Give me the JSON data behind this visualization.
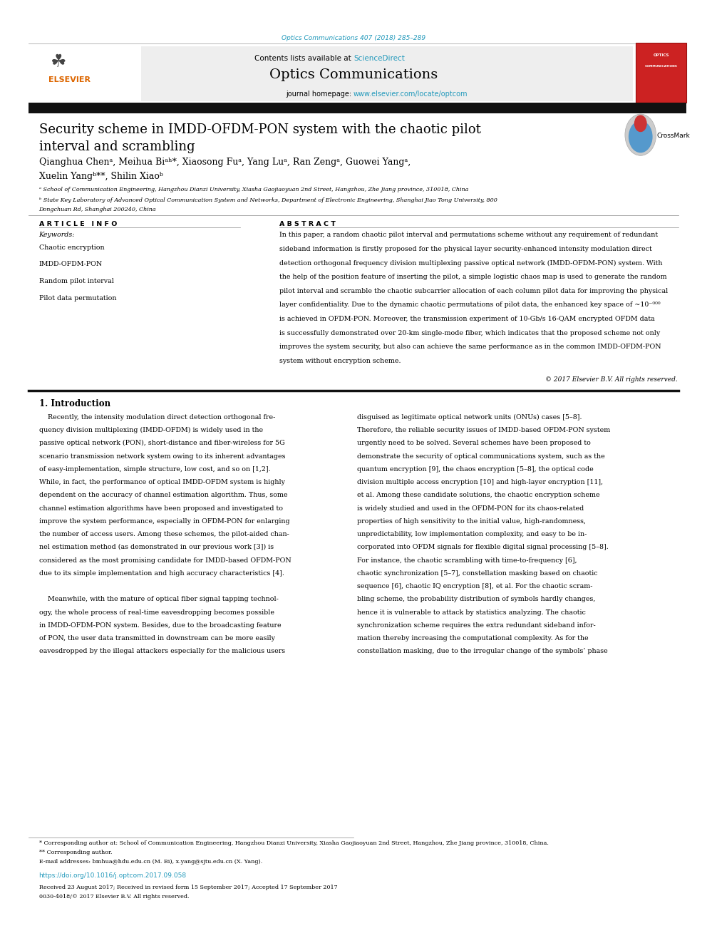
{
  "page_width": 9.92,
  "page_height": 13.23,
  "background_color": "#ffffff",
  "journal_ref": "Optics Communications 407 (2018) 285–289",
  "journal_ref_color": "#2299bb",
  "journal_name": "Optics Communications",
  "journal_homepage_url": "www.elsevier.com/locate/optcom",
  "journal_homepage_color": "#2299bb",
  "title_line1": "Security scheme in IMDD-OFDM-PON system with the chaotic pilot",
  "title_line2": "interval and scrambling",
  "authors_line1": "Qianghua Chenᵃ, Meihua Biᵃʰ*, Xiaosong Fuᵃ, Yang Luᵃ, Ran Zengᵃ, Guowei Yangᵃ,",
  "authors_line2": "Xuelin Yangᵇ**, Shilin Xiaoᵇ",
  "affil_a": "ᵃ School of Communication Engineering, Hangzhou Dianzi University, Xiasha Gaojiaoyuan 2nd Street, Hangzhou, Zhe Jiang province, 310018, China",
  "affil_b_line1": "ᵇ State Key Laboratory of Advanced Optical Communication System and Networks, Department of Electronic Engineering, Shanghai Jiao Tong University, 800",
  "affil_b_line2": "Dongchuan Rd, Shanghai 200240, China",
  "article_info_title": "A R T I C L E   I N F O",
  "abstract_title": "A B S T R A C T",
  "keywords_title": "Keywords:",
  "keywords": [
    "Chaotic encryption",
    "IMDD-OFDM-PON",
    "Random pilot interval",
    "Pilot data permutation"
  ],
  "copyright": "© 2017 Elsevier B.V. All rights reserved.",
  "intro_heading": "1. Introduction",
  "intro_col1_lines": [
    "    Recently, the intensity modulation direct detection orthogonal fre-",
    "quency division multiplexing (IMDD-OFDM) is widely used in the",
    "passive optical network (PON), short-distance and fiber-wireless for 5G",
    "scenario transmission network system owing to its inherent advantages",
    "of easy-implementation, simple structure, low cost, and so on [1,2].",
    "While, in fact, the performance of optical IMDD-OFDM system is highly",
    "dependent on the accuracy of channel estimation algorithm. Thus, some",
    "channel estimation algorithms have been proposed and investigated to",
    "improve the system performance, especially in OFDM-PON for enlarging",
    "the number of access users. Among these schemes, the pilot-aided chan-",
    "nel estimation method (as demonstrated in our previous work [3]) is",
    "considered as the most promising candidate for IMDD-based OFDM-PON",
    "due to its simple implementation and high accuracy characteristics [4].",
    "",
    "    Meanwhile, with the mature of optical fiber signal tapping technol-",
    "ogy, the whole process of real-time eavesdropping becomes possible",
    "in IMDD-OFDM-PON system. Besides, due to the broadcasting feature",
    "of PON, the user data transmitted in downstream can be more easily",
    "eavesdropped by the illegal attackers especially for the malicious users"
  ],
  "intro_col2_lines": [
    "disguised as legitimate optical network units (ONUs) cases [5–8].",
    "Therefore, the reliable security issues of IMDD-based OFDM-PON system",
    "urgently need to be solved. Several schemes have been proposed to",
    "demonstrate the security of optical communications system, such as the",
    "quantum encryption [9], the chaos encryption [5–8], the optical code",
    "division multiple access encryption [10] and high-layer encryption [11],",
    "et al. Among these candidate solutions, the chaotic encryption scheme",
    "is widely studied and used in the OFDM-PON for its chaos-related",
    "properties of high sensitivity to the initial value, high-randomness,",
    "unpredictability, low implementation complexity, and easy to be in-",
    "corporated into OFDM signals for flexible digital signal processing [5–8].",
    "For instance, the chaotic scrambling with time-to-frequency [6],",
    "chaotic synchronization [5–7], constellation masking based on chaotic",
    "sequence [6], chaotic IQ encryption [8], et al. For the chaotic scram-",
    "bling scheme, the probability distribution of symbols hardly changes,",
    "hence it is vulnerable to attack by statistics analyzing. The chaotic",
    "synchronization scheme requires the extra redundant sideband infor-",
    "mation thereby increasing the computational complexity. As for the",
    "constellation masking, due to the irregular change of the symbols’ phase"
  ],
  "footnote_star": "* Corresponding author at: School of Communication Engineering, Hangzhou Dianzi University, Xiasha Gaojiaoyuan 2nd Street, Hangzhou, Zhe Jiang province, 310018, China.",
  "footnote_dstar": "** Corresponding author.",
  "footnote_email": "E-mail addresses: bmhua@hdu.edu.cn (M. Bi), x.yang@sjtu.edu.cn (X. Yang).",
  "doi": "https://doi.org/10.1016/j.optcom.2017.09.058",
  "received": "Received 23 August 2017; Received in revised form 15 September 2017; Accepted 17 September 2017",
  "issn": "0030-4018/© 2017 Elsevier B.V. All rights reserved.",
  "black_bar_color": "#111111",
  "text_color": "#000000",
  "link_color": "#2299bb",
  "elsevier_color": "#dd6600",
  "sciencedirect_color": "#2299bb"
}
